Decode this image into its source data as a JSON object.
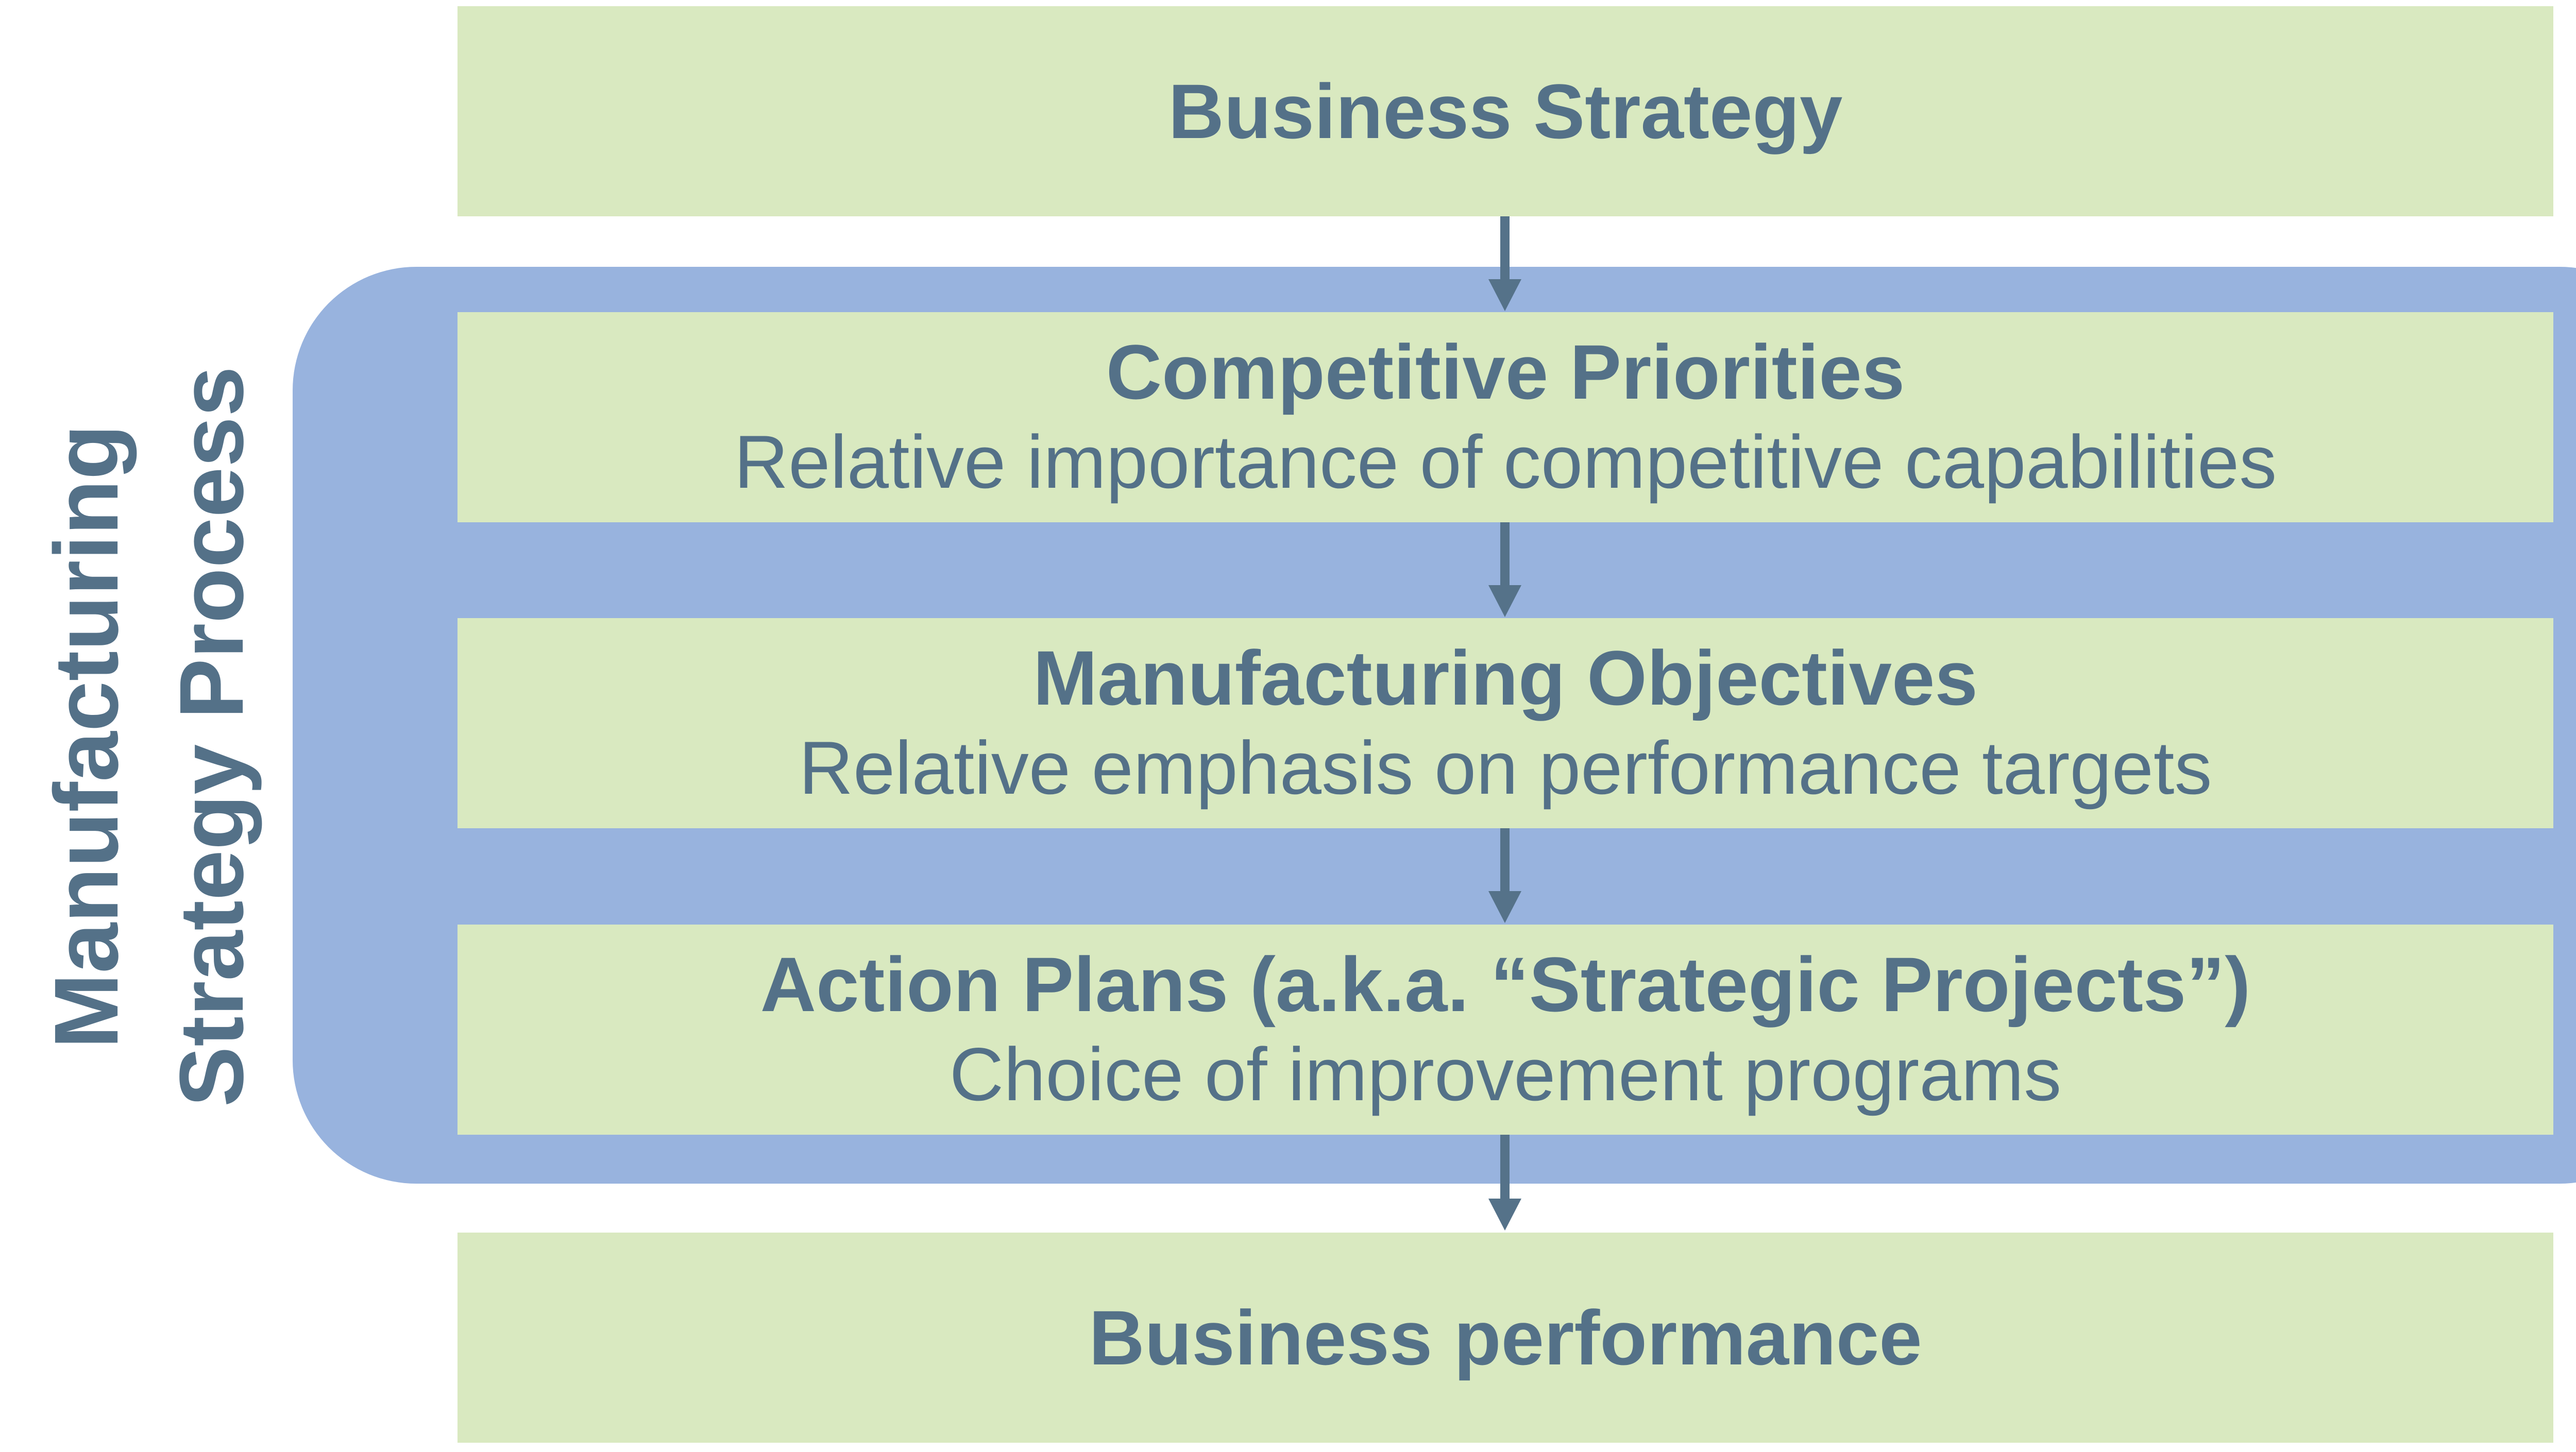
{
  "side_label": {
    "line1": "Manufacturing",
    "line2": "Strategy Process"
  },
  "boxes": {
    "business_strategy": {
      "title": "Business Strategy"
    },
    "competitive_priorities": {
      "title": "Competitive Priorities",
      "subtitle": "Relative importance of competitive capabilities"
    },
    "manufacturing_objectives": {
      "title": "Manufacturing Objectives",
      "subtitle": "Relative emphasis on performance targets"
    },
    "action_plans": {
      "title": "Action Plans (a.k.a. “Strategic Projects”)",
      "subtitle": "Choice of improvement programs"
    },
    "business_performance": {
      "title": "Business performance"
    }
  },
  "colors": {
    "box_fill": "#d9e9c0",
    "frame_fill": "#98b3de",
    "text": "#547188",
    "arrow": "#557289"
  }
}
